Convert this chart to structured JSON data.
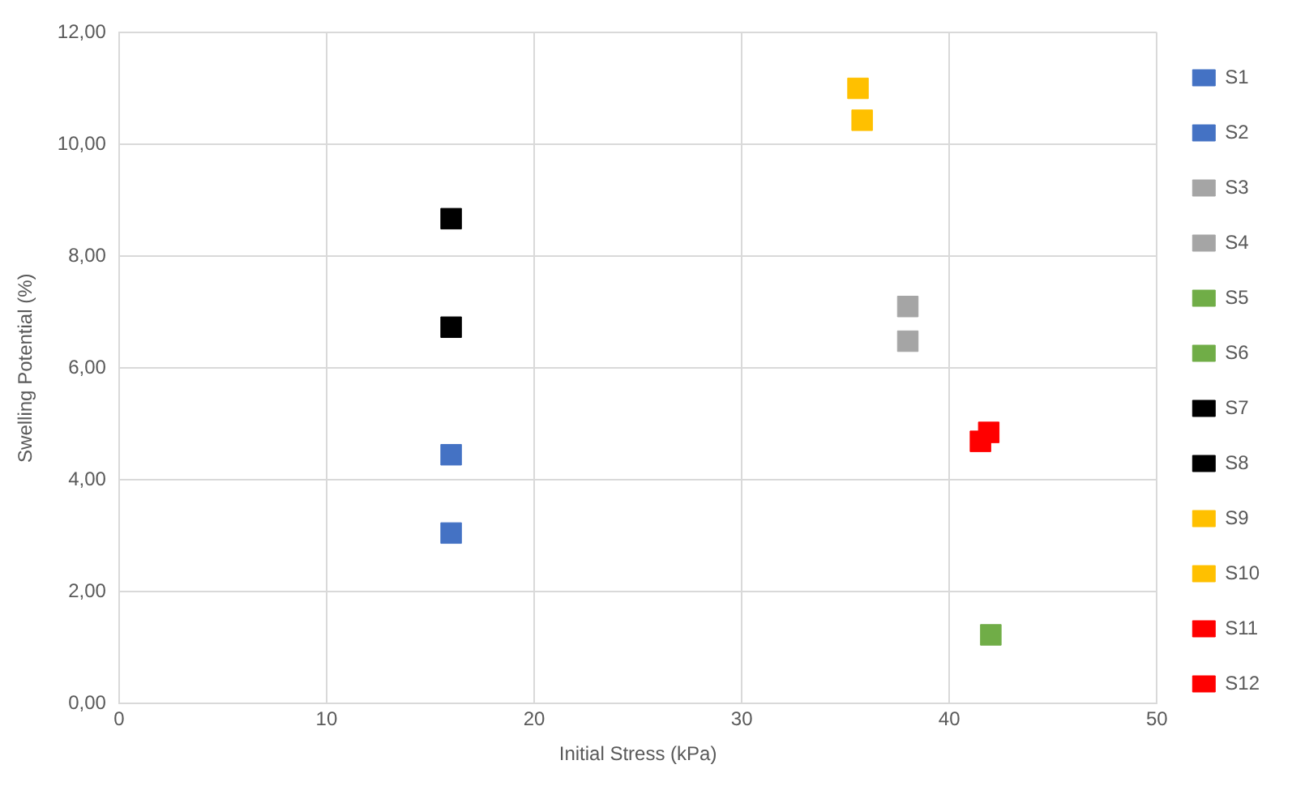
{
  "chart_data": {
    "type": "scatter",
    "xlabel": "Initial Stress (kPa)",
    "ylabel": "Swelling Potential (%)",
    "xlim": [
      0,
      50
    ],
    "xticks": [
      0,
      10,
      20,
      30,
      40,
      50
    ],
    "ylim": [
      0,
      12
    ],
    "yticks": [
      {
        "value": 0,
        "label": "0,00"
      },
      {
        "value": 2,
        "label": "2,00"
      },
      {
        "value": 4,
        "label": "4,00"
      },
      {
        "value": 6,
        "label": "6,00"
      },
      {
        "value": 8,
        "label": "8,00"
      },
      {
        "value": 10,
        "label": "10,00"
      },
      {
        "value": 12,
        "label": "12,00"
      }
    ],
    "grid": true,
    "legend": "right",
    "marker": "square",
    "series": [
      {
        "name": "S1",
        "color": "#4472c4",
        "x": [
          16.0
        ],
        "values": [
          4.45
        ]
      },
      {
        "name": "S2",
        "color": "#4472c4",
        "x": [
          16.0
        ],
        "values": [
          3.05
        ]
      },
      {
        "name": "S3",
        "color": "#a5a5a5",
        "x": [
          38.0
        ],
        "values": [
          7.1
        ]
      },
      {
        "name": "S4",
        "color": "#a5a5a5",
        "x": [
          38.0
        ],
        "values": [
          6.48
        ]
      },
      {
        "name": "S5",
        "color": "#70ad47",
        "x": [
          42.0
        ],
        "values": [
          1.23
        ]
      },
      {
        "name": "S6",
        "color": "#70ad47",
        "x": [
          null
        ],
        "values": [
          null
        ]
      },
      {
        "name": "S7",
        "color": "#000000",
        "x": [
          16.0
        ],
        "values": [
          8.67
        ]
      },
      {
        "name": "S8",
        "color": "#000000",
        "x": [
          16.0
        ],
        "values": [
          6.73
        ]
      },
      {
        "name": "S9",
        "color": "#ffc000",
        "x": [
          35.8
        ],
        "values": [
          10.43
        ]
      },
      {
        "name": "S10",
        "color": "#ffc000",
        "x": [
          35.6
        ],
        "values": [
          11.0
        ]
      },
      {
        "name": "S11",
        "color": "#ff0000",
        "x": [
          41.9
        ],
        "values": [
          4.85
        ]
      },
      {
        "name": "S12",
        "color": "#ff0000",
        "x": [
          41.5
        ],
        "values": [
          4.69
        ]
      }
    ]
  }
}
